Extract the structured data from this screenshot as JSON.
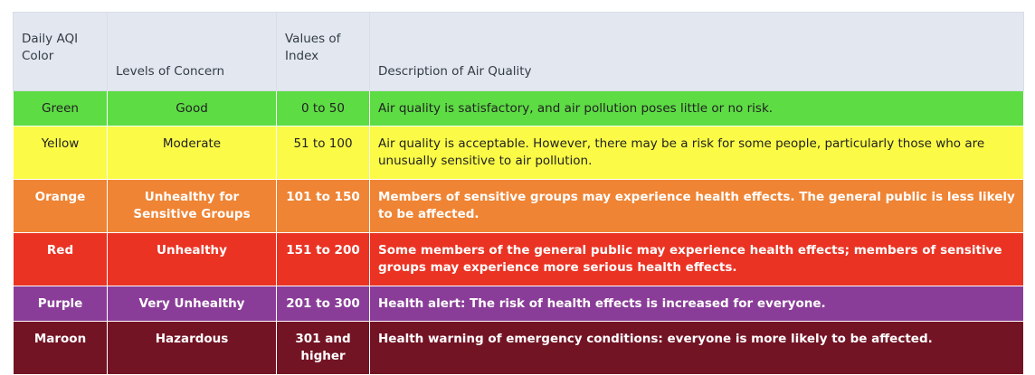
{
  "table": {
    "headers": [
      "Daily AQI Color",
      "Levels of Concern",
      "Values of Index",
      "Description of Air Quality"
    ],
    "rows": [
      {
        "color_name": "Green",
        "level": "Good",
        "range": "0 to 50",
        "description": "Air quality is satisfactory, and air pollution poses little or no risk.",
        "bg": "#5ddc44",
        "text_style": "light"
      },
      {
        "color_name": "Yellow",
        "level": "Moderate",
        "range": "51 to 100",
        "description": "Air quality is acceptable. However, there may be a risk for some people, particularly those who are unusually sensitive to air pollution.",
        "bg": "#fbfb47",
        "text_style": "light"
      },
      {
        "color_name": "Orange",
        "level": "Unhealthy for Sensitive Groups",
        "range": "101 to 150",
        "description": "Members of sensitive groups may experience health effects. The general public is less likely to be affected.",
        "bg": "#ef8434",
        "text_style": "dark"
      },
      {
        "color_name": "Red",
        "level": "Unhealthy",
        "range": "151 to 200",
        "description": "Some members of the general public may experience health effects; members of sensitive groups may experience more serious health effects.",
        "bg": "#ea3323",
        "text_style": "dark"
      },
      {
        "color_name": "Purple",
        "level": "Very Unhealthy",
        "range": "201 to 300",
        "description": "Health alert: The risk of health effects is increased for everyone.",
        "bg": "#8a3d98",
        "text_style": "dark"
      },
      {
        "color_name": "Maroon",
        "level": "Hazardous",
        "range": "301 and higher",
        "description": "Health warning of emergency conditions: everyone is more likely to be affected.",
        "bg": "#731425",
        "text_style": "dark"
      }
    ]
  }
}
